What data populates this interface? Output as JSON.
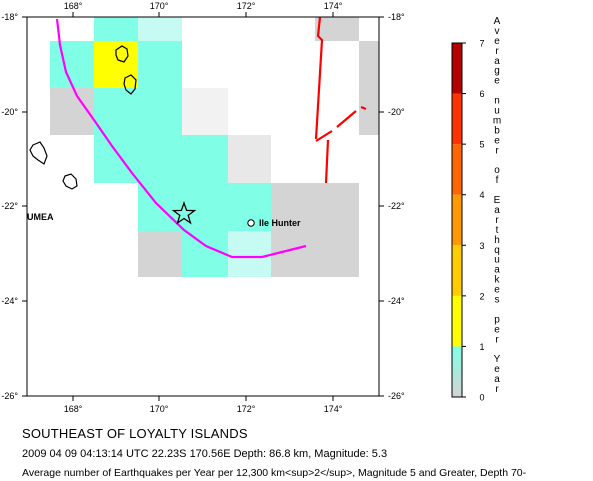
{
  "map": {
    "x_ticks": [
      "168°",
      "170°",
      "172°",
      "174°"
    ],
    "y_ticks_left": [
      "-18°",
      "-20°",
      "-22°",
      "-24°",
      "-26°"
    ],
    "y_ticks_right": [
      "-18°",
      "-20°",
      "-22°",
      "-24°",
      "-26°"
    ],
    "place_labels": {
      "ile_hunter": "Ile Hunter",
      "umea": "UMEA"
    },
    "colors": {
      "cyan": "#80ffe6",
      "light_cyan": "#c6fbf3",
      "yellow": "#ffff00",
      "gray": "#d4d4d4",
      "light_gray": "#e8e8e8",
      "trench": "#ff00ff",
      "fault": "#ff0000"
    }
  },
  "legend": {
    "title_chars": [
      "A",
      "v",
      "e",
      "r",
      "a",
      "g",
      "e",
      "",
      "n",
      "u",
      "m",
      "b",
      "e",
      "r",
      "",
      "o",
      "f",
      "",
      "E",
      "a",
      "r",
      "t",
      "h",
      "q",
      "u",
      "a",
      "k",
      "e",
      "s",
      "",
      "p",
      "e",
      "r",
      "",
      "Y",
      "e",
      "a",
      "r"
    ],
    "ticks": [
      "7",
      "6",
      "5",
      "4",
      "3",
      "2",
      "1",
      "0"
    ],
    "bands": [
      {
        "from": 0,
        "to": 1,
        "top": "#80ffe6",
        "bottom": "#d4d4d4"
      },
      {
        "from": 1,
        "to": 2,
        "top": "#ffff00",
        "bottom": "#ffff00"
      },
      {
        "from": 2,
        "to": 3,
        "top": "#ffcc00",
        "bottom": "#ffcc00"
      },
      {
        "from": 3,
        "to": 4,
        "top": "#ff9900",
        "bottom": "#ff9900"
      },
      {
        "from": 4,
        "to": 5,
        "top": "#ff6600",
        "bottom": "#ff6600"
      },
      {
        "from": 5,
        "to": 6,
        "top": "#ff3300",
        "bottom": "#ff3300"
      },
      {
        "from": 6,
        "to": 7,
        "top": "#b30000",
        "bottom": "#b30000"
      }
    ]
  },
  "caption": {
    "title": "SOUTHEAST OF LOYALTY ISLANDS",
    "event": "2009 04 09 04:13:14 UTC 22.23S 170.56E Depth: 86.8 km, Magnitude: 5.3",
    "summary": "Average number of Earthquakes per Year per 12,300 km<sup>2</sup>, Magnitude 5 and Greater, Depth 70-"
  }
}
